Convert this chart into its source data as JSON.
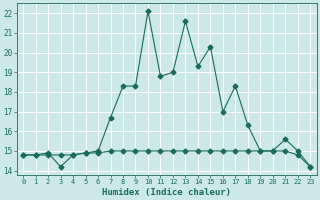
{
  "xlabel": "Humidex (Indice chaleur)",
  "ylabel": "",
  "bg_color": "#cce8e8",
  "grid_color": "#ffffff",
  "line_color": "#1a6b5a",
  "xlim": [
    -0.5,
    23.5
  ],
  "ylim": [
    13.8,
    22.5
  ],
  "yticks": [
    14,
    15,
    16,
    17,
    18,
    19,
    20,
    21,
    22
  ],
  "xticks": [
    0,
    1,
    2,
    3,
    4,
    5,
    6,
    7,
    8,
    9,
    10,
    11,
    12,
    13,
    14,
    15,
    16,
    17,
    18,
    19,
    20,
    21,
    22,
    23
  ],
  "line1_x": [
    0,
    1,
    2,
    3,
    4,
    5,
    6,
    7,
    8,
    9,
    10,
    11,
    12,
    13,
    14,
    15,
    16,
    17,
    18,
    19,
    20,
    21,
    22,
    23
  ],
  "line1_y": [
    14.8,
    14.8,
    14.9,
    14.2,
    14.8,
    14.9,
    15.0,
    16.7,
    18.3,
    18.3,
    22.1,
    18.8,
    19.0,
    21.6,
    19.3,
    20.3,
    17.0,
    18.3,
    16.3,
    15.0,
    15.0,
    15.6,
    15.0,
    14.2
  ],
  "line2_x": [
    0,
    1,
    2,
    3,
    4,
    5,
    6,
    7,
    8,
    9,
    10,
    11,
    12,
    13,
    14,
    15,
    16,
    17,
    18,
    19,
    20,
    21,
    22,
    23
  ],
  "line2_y": [
    14.8,
    14.8,
    14.8,
    14.8,
    14.8,
    14.9,
    14.9,
    15.0,
    15.0,
    15.0,
    15.0,
    15.0,
    15.0,
    15.0,
    15.0,
    15.0,
    15.0,
    15.0,
    15.0,
    15.0,
    15.0,
    15.0,
    14.8,
    14.2
  ],
  "markersize": 2.5,
  "linewidth": 0.8
}
